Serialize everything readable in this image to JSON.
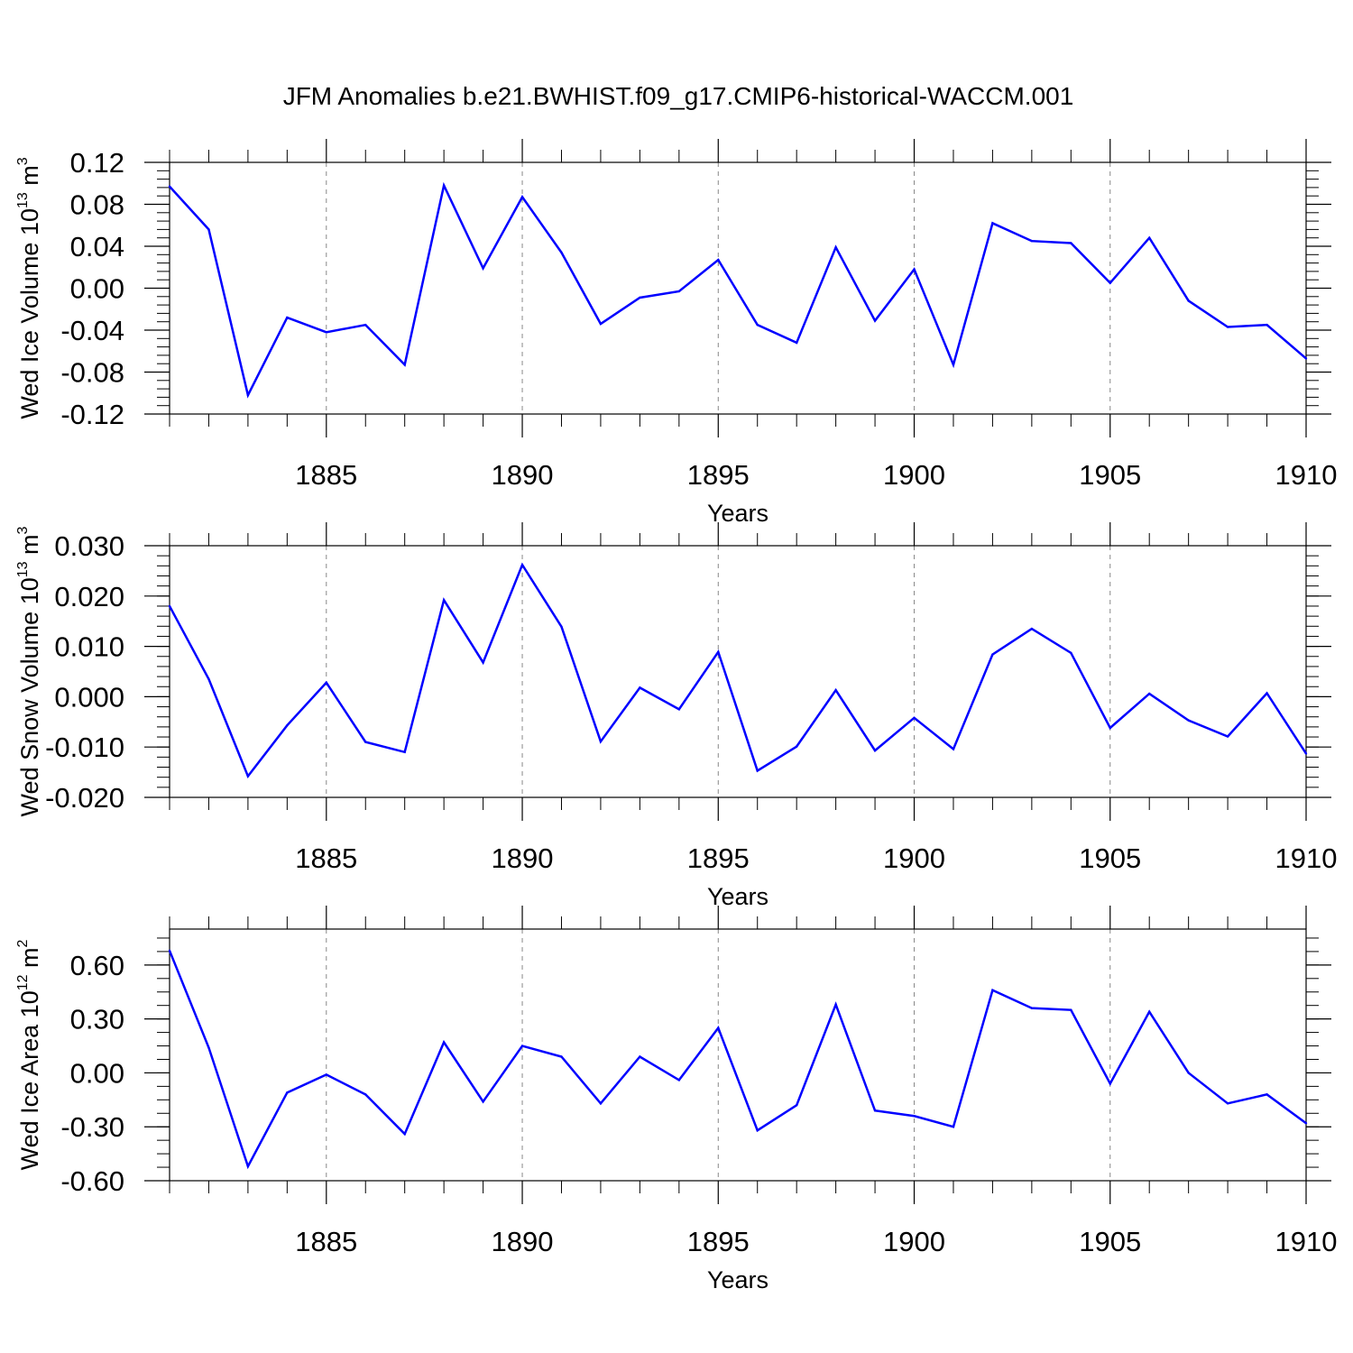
{
  "figure_title": "JFM Anomalies b.e21.BWHIST.f09_g17.CMIP6-historical-WACCM.001",
  "line_color": "#0000ff",
  "chart_data": [
    {
      "type": "line",
      "title": "",
      "xlabel": "Years",
      "ylabel": {
        "main": "Wed Ice Volume 10",
        "exp": "13",
        "unit": " m",
        "unit_exp": "3"
      },
      "xlim": [
        1881,
        1910
      ],
      "ylim": [
        -0.12,
        0.12
      ],
      "x_ticks": [
        1885,
        1890,
        1895,
        1900,
        1905,
        1910
      ],
      "y_ticks": [
        -0.12,
        -0.08,
        -0.04,
        0.0,
        0.04,
        0.08,
        0.12
      ],
      "y_tick_labels": [
        "-0.12",
        "-0.08",
        "-0.04",
        "0.00",
        "0.04",
        "0.08",
        "0.12"
      ],
      "y_minor_step": 0.008,
      "x": [
        1881,
        1882,
        1883,
        1884,
        1885,
        1886,
        1887,
        1888,
        1889,
        1890,
        1891,
        1892,
        1893,
        1894,
        1895,
        1896,
        1897,
        1898,
        1899,
        1900,
        1901,
        1902,
        1903,
        1904,
        1905,
        1906,
        1907,
        1908,
        1909,
        1910
      ],
      "y": [
        0.097,
        0.056,
        -0.102,
        -0.028,
        -0.042,
        -0.035,
        -0.073,
        0.098,
        0.019,
        0.087,
        0.034,
        -0.034,
        -0.009,
        -0.003,
        0.027,
        -0.035,
        -0.052,
        0.039,
        -0.031,
        0.018,
        -0.073,
        0.062,
        0.045,
        0.043,
        0.005,
        0.048,
        -0.012,
        -0.037,
        -0.035,
        -0.067
      ],
      "grid": "vertical dashed at major x ticks"
    },
    {
      "type": "line",
      "title": "",
      "xlabel": "Years",
      "ylabel": {
        "main": "Wed Snow Volume 10",
        "exp": "13",
        "unit": " m",
        "unit_exp": "3"
      },
      "xlim": [
        1881,
        1910
      ],
      "ylim": [
        -0.02,
        0.03
      ],
      "x_ticks": [
        1885,
        1890,
        1895,
        1900,
        1905,
        1910
      ],
      "y_ticks": [
        -0.02,
        -0.01,
        0.0,
        0.01,
        0.02,
        0.03
      ],
      "y_tick_labels": [
        "-0.020",
        "-0.010",
        "0.000",
        "0.010",
        "0.020",
        "0.030"
      ],
      "y_minor_step": 0.002,
      "x": [
        1881,
        1882,
        1883,
        1884,
        1885,
        1886,
        1887,
        1888,
        1889,
        1890,
        1891,
        1892,
        1893,
        1894,
        1895,
        1896,
        1897,
        1898,
        1899,
        1900,
        1901,
        1902,
        1903,
        1904,
        1905,
        1906,
        1907,
        1908,
        1909,
        1910
      ],
      "y": [
        0.018,
        0.0035,
        -0.0158,
        -0.0057,
        0.0028,
        -0.009,
        -0.011,
        0.0192,
        0.0068,
        0.0262,
        0.0139,
        -0.0089,
        0.0018,
        -0.0025,
        0.0089,
        -0.0147,
        -0.0099,
        0.0013,
        -0.0107,
        -0.0042,
        -0.0104,
        0.0084,
        0.0135,
        0.0087,
        -0.0062,
        0.0006,
        -0.0047,
        -0.0079,
        0.0007,
        -0.0113
      ],
      "grid": "vertical dashed at major x ticks"
    },
    {
      "type": "line",
      "title": "",
      "xlabel": "Years",
      "ylabel": {
        "main": "Wed Ice Area 10",
        "exp": "12",
        "unit": " m",
        "unit_exp": "2"
      },
      "xlim": [
        1881,
        1910
      ],
      "ylim": [
        -0.6,
        0.8
      ],
      "x_ticks": [
        1885,
        1890,
        1895,
        1900,
        1905,
        1910
      ],
      "y_ticks": [
        -0.6,
        -0.3,
        0.0,
        0.3,
        0.6
      ],
      "y_tick_labels": [
        "-0.60",
        "-0.30",
        "0.00",
        "0.30",
        "0.60"
      ],
      "y_minor_step": 0.075,
      "x": [
        1881,
        1882,
        1883,
        1884,
        1885,
        1886,
        1887,
        1888,
        1889,
        1890,
        1891,
        1892,
        1893,
        1894,
        1895,
        1896,
        1897,
        1898,
        1899,
        1900,
        1901,
        1902,
        1903,
        1904,
        1905,
        1906,
        1907,
        1908,
        1909,
        1910
      ],
      "y": [
        0.68,
        0.14,
        -0.52,
        -0.11,
        -0.01,
        -0.12,
        -0.34,
        0.17,
        -0.16,
        0.15,
        0.09,
        -0.17,
        0.09,
        -0.04,
        0.25,
        -0.32,
        -0.18,
        0.38,
        -0.21,
        -0.24,
        -0.3,
        0.46,
        0.36,
        0.35,
        -0.06,
        0.34,
        0.0,
        -0.17,
        -0.12,
        -0.28
      ],
      "grid": "vertical dashed at major x ticks"
    }
  ]
}
